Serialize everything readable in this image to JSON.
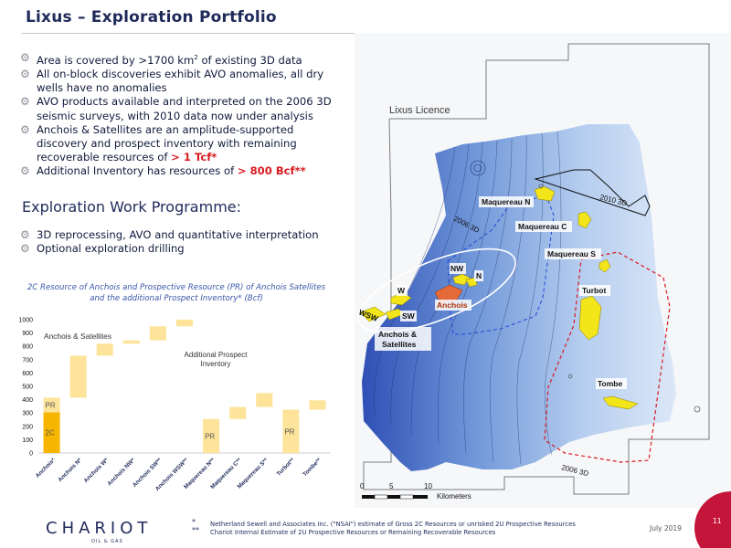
{
  "title": "Lixus – Exploration Portfolio",
  "bullets_top": [
    {
      "pre": "Area is covered by >1700 km",
      "sup": "2",
      "post": " of existing 3D data",
      "red": ""
    },
    {
      "pre": "All on-block discoveries exhibit AVO anomalies, all dry wells have no anomalies",
      "sup": "",
      "post": "",
      "red": ""
    },
    {
      "pre": "AVO products available and interpreted on the 2006 3D seismic surveys, with 2010 data now under analysis",
      "sup": "",
      "post": "",
      "red": ""
    },
    {
      "pre": "Anchois & Satellites are an amplitude-supported discovery and prospect inventory with remaining recoverable resources of ",
      "sup": "",
      "post": "",
      "red": "> 1 Tcf*"
    },
    {
      "pre": "Additional Inventory has resources of ",
      "sup": "",
      "post": "",
      "red": "> 800 Bcf**"
    }
  ],
  "work_programme": {
    "heading": "Exploration Work Programme:",
    "bullets": [
      "3D reprocessing, AVO and quantitative interpretation",
      "Optional exploration drilling"
    ]
  },
  "chart_data": {
    "type": "bar",
    "subtype": "waterfall",
    "title": "2C Resource of Anchois and Prospective Resource (PR) of Anchois Satellites and the additional Prospect Inventory* (Bcf)",
    "ylim": [
      0,
      1000
    ],
    "yticks": [
      0,
      100,
      200,
      300,
      400,
      500,
      600,
      700,
      800,
      900,
      1000
    ],
    "categories": [
      "Anchois*",
      "Anchois N*",
      "Anchois W*",
      "Anchois NW*",
      "Anchois SW**",
      "Anchois WSW**",
      "Maquereau N**",
      "Maquereau C**",
      "Maquereau S**",
      "Turbot**",
      "Tombe**"
    ],
    "bars": [
      {
        "base": 0,
        "top": 305,
        "color": "#f7b500",
        "label": "2C"
      },
      {
        "base": 305,
        "top": 415,
        "color": "#fde49a",
        "label": "PR"
      },
      {
        "base": 415,
        "top": 730,
        "color": "#fde49a",
        "label": ""
      },
      {
        "base": 730,
        "top": 820,
        "color": "#fde49a",
        "label": ""
      },
      {
        "base": 820,
        "top": 845,
        "color": "#fde49a",
        "label": ""
      },
      {
        "base": 845,
        "top": 950,
        "color": "#fde49a",
        "label": ""
      },
      {
        "base": 950,
        "top": 1000,
        "color": "#fde49a",
        "label": ""
      },
      {
        "base": 0,
        "top": 255,
        "color": "#fde49a",
        "label": "PR"
      },
      {
        "base": 255,
        "top": 345,
        "color": "#fde49a",
        "label": ""
      },
      {
        "base": 345,
        "top": 450,
        "color": "#fde49a",
        "label": ""
      },
      {
        "base": 0,
        "top": 325,
        "color": "#fde49a",
        "label": "PR"
      },
      {
        "base": 325,
        "top": 395,
        "color": "#fde49a",
        "label": ""
      }
    ],
    "bar_positions": [
      0,
      0,
      1,
      2,
      3,
      4,
      5,
      6,
      7,
      8,
      9,
      10
    ],
    "annotations": [
      "Anchois & Satellites",
      "Additional Prospect Inventory"
    ]
  },
  "map": {
    "licence_label": "Lixus Licence",
    "survey_labels": [
      "2010 3D",
      "2006 3D",
      "2006 3D"
    ],
    "prospects": [
      "Maquereau N",
      "Maquereau C",
      "Maquereau S",
      "Turbot",
      "Tombe",
      "NW",
      "N",
      "W",
      "SW",
      "WSW",
      "Anchois",
      "Anchois & Satellites"
    ],
    "scale_labels": [
      "0",
      "5",
      "10",
      "Kilometers"
    ]
  },
  "footer": {
    "logo_word": "CHARIOT",
    "logo_sub": "OIL & GAS",
    "markers": [
      "*",
      "**"
    ],
    "footnote_lines": [
      "Netherland Sewell and Associates Inc. (\"NSAI\") estimate of Gross 2C Resources or unrisked 2U Prospective Resources",
      "Chariot Internal Estimate of 2U Prospective Resources or Remaining Recoverable Resources"
    ],
    "date": "July 2019",
    "page": "11"
  },
  "colors": {
    "accent": "#1f2a5a",
    "highlight": "#d9191f",
    "bar_2c": "#f7b500",
    "bar_pr": "#fde49a",
    "prospect": "#f2e51a"
  }
}
